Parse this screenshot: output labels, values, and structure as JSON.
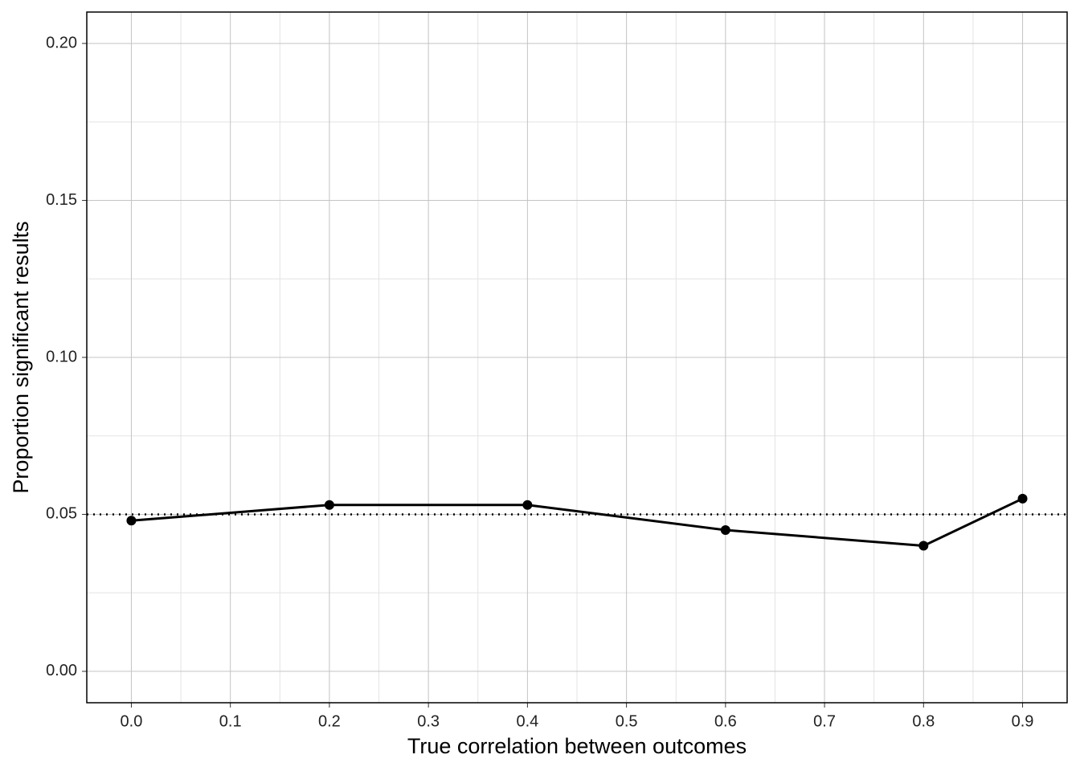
{
  "chart_data": {
    "type": "line",
    "x_label": "True correlation between outcomes",
    "y_label": "Proportion significant results",
    "x": [
      0,
      0.2,
      0.4,
      0.6,
      0.8,
      0.9
    ],
    "series": [
      {
        "color": "#000000",
        "values": [
          0.048,
          0.053,
          0.053,
          0.045,
          0.04,
          0.055
        ]
      }
    ],
    "reference_line": {
      "y": 0.05,
      "style": "dotted"
    },
    "xlim": [
      -0.045,
      0.945
    ],
    "ylim": [
      -0.01,
      0.21
    ],
    "xticks": [
      {
        "value": 0,
        "label": "0.0"
      },
      0.1,
      0.2,
      0.3,
      0.4,
      0.5,
      0.6,
      0.7,
      0.8,
      0.9
    ],
    "yticks": [
      {
        "value": 0,
        "label": "0.00"
      },
      {
        "value": 0.05,
        "label": "0.05"
      },
      {
        "value": 0.1,
        "label": "0.10"
      },
      {
        "value": 0.15,
        "label": "0.15"
      },
      {
        "value": 0.2,
        "label": "0.20"
      }
    ],
    "grid": true,
    "minor_grid": true
  }
}
